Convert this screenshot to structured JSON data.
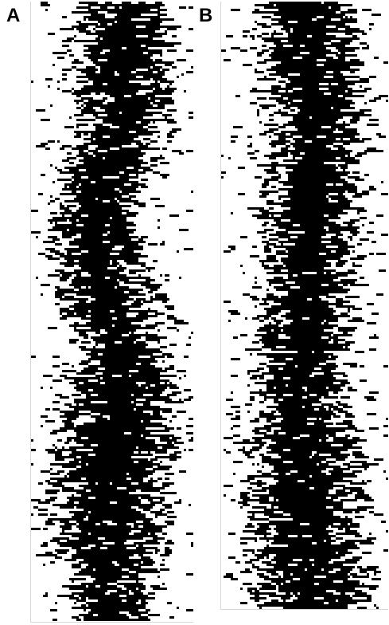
{
  "panels": [
    {
      "label": "A"
    },
    {
      "label": "B"
    }
  ],
  "colors": {
    "ink": "#000000",
    "background": "#ffffff",
    "frame": "#d8d8d8"
  }
}
